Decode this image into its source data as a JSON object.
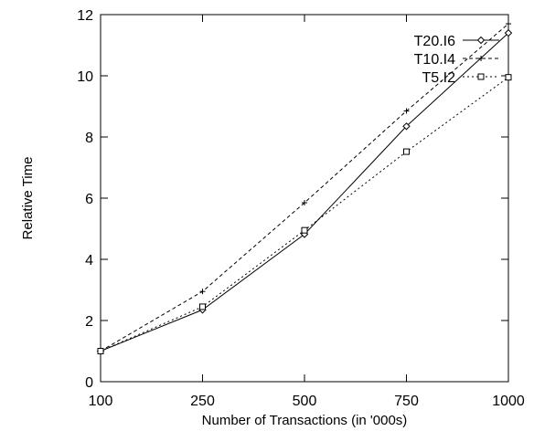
{
  "chart_data": {
    "type": "line",
    "title": "",
    "xlabel": "Number of Transactions (in '000s)",
    "ylabel": "Relative Time",
    "x": [
      100,
      250,
      500,
      750,
      1000
    ],
    "x_tick_labels": [
      "100",
      "250",
      "500",
      "750",
      "1000"
    ],
    "xlim": [
      100,
      1000
    ],
    "ylim": [
      0,
      12
    ],
    "y_ticks": [
      0,
      2,
      4,
      6,
      8,
      10,
      12
    ],
    "y_tick_labels": [
      "0",
      "2",
      "4",
      "6",
      "8",
      "10",
      "12"
    ],
    "grid": false,
    "legend_position": "top-right",
    "series": [
      {
        "name": "T20.I6",
        "values": [
          1.0,
          2.35,
          4.82,
          8.35,
          11.4
        ],
        "color": "#000000",
        "line": "solid",
        "marker": "diamond"
      },
      {
        "name": "T10.I4",
        "values": [
          1.0,
          2.95,
          5.85,
          8.85,
          11.7
        ],
        "color": "#000000",
        "line": "dashed",
        "marker": "plus"
      },
      {
        "name": "T5.I2",
        "values": [
          1.0,
          2.45,
          4.95,
          7.52,
          9.95
        ],
        "color": "#000000",
        "line": "dotted",
        "marker": "square"
      }
    ]
  }
}
